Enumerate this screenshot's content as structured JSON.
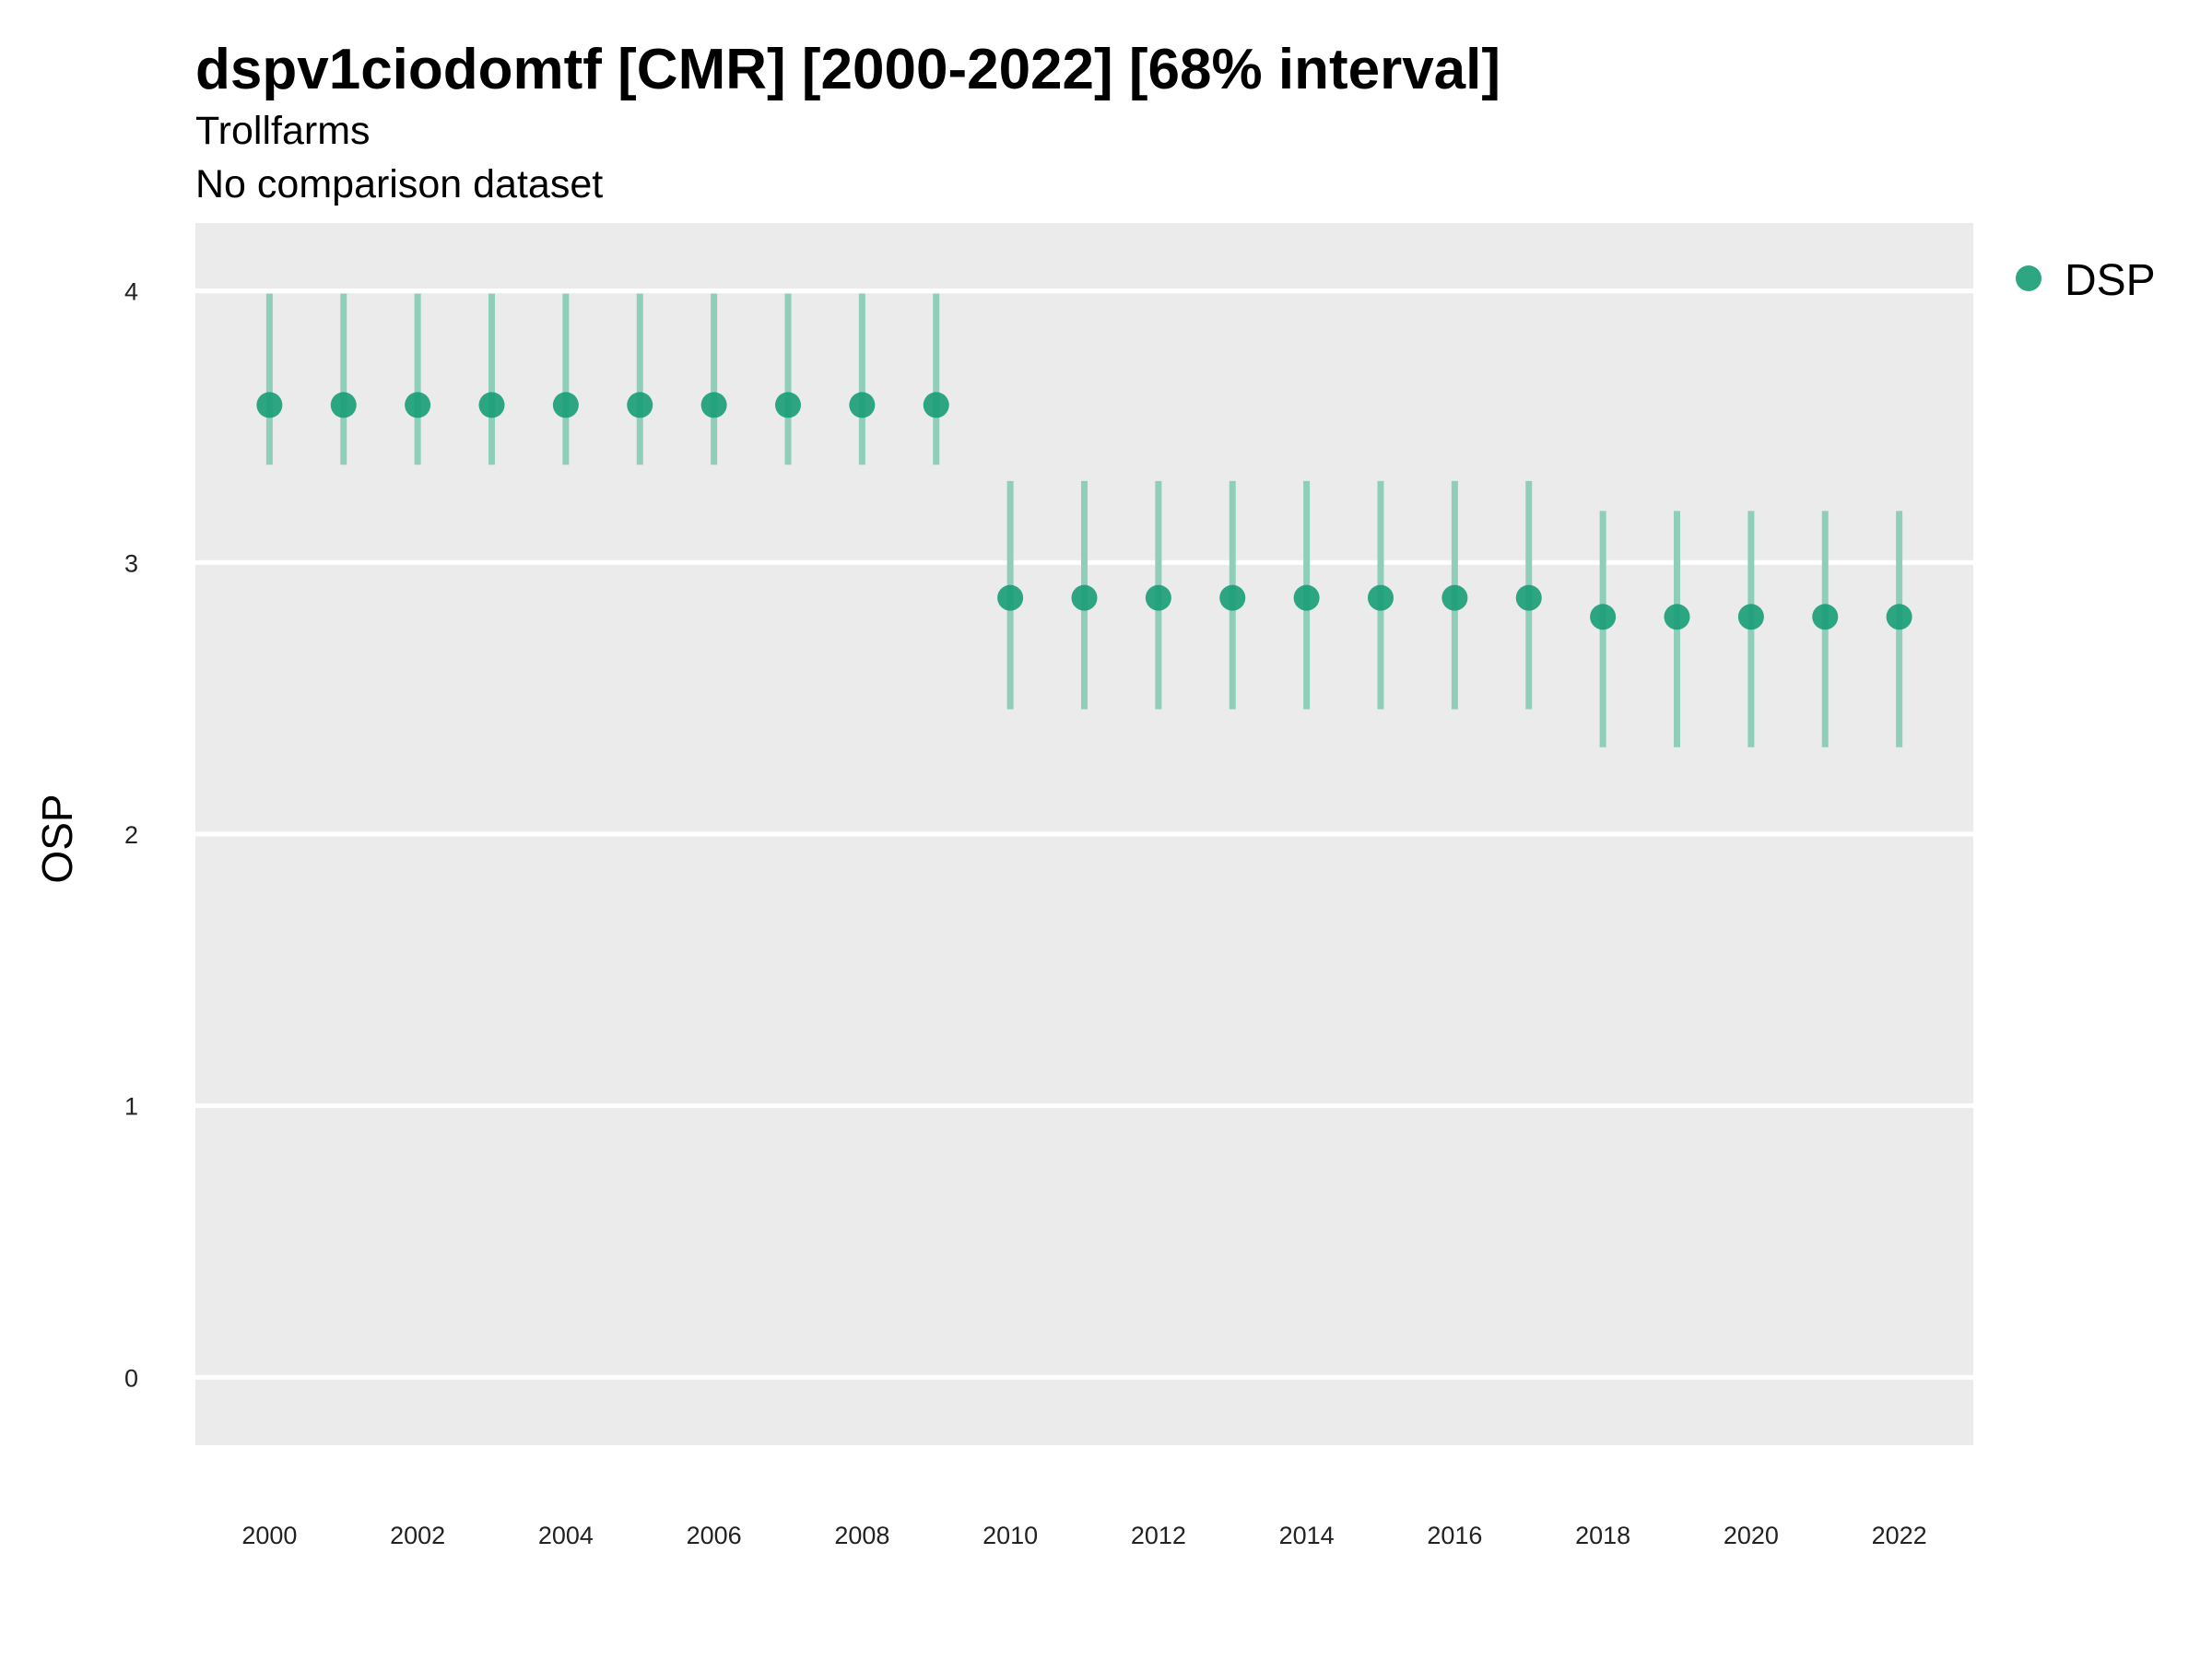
{
  "header": {
    "title": "dspv1ciodomtf [CMR] [2000-2022] [68% interval]",
    "subtitle_1": "Trollfarms",
    "subtitle_2": "No comparison dataset"
  },
  "chart_data": {
    "type": "scatter",
    "title": "dspv1ciodomtf [CMR] [2000-2022] [68% interval]",
    "subtitle": [
      "Trollfarms",
      "No comparison dataset"
    ],
    "xlabel": "",
    "ylabel": "OSP",
    "xlim": [
      1999,
      2023
    ],
    "ylim": [
      -0.25,
      4.25
    ],
    "x_ticks": [
      "2000",
      "2002",
      "2004",
      "2006",
      "2008",
      "2010",
      "2012",
      "2014",
      "2016",
      "2018",
      "2020",
      "2022"
    ],
    "y_ticks": [
      "0",
      "1",
      "2",
      "3",
      "4"
    ],
    "grid": true,
    "legend": {
      "position": "right",
      "entries": [
        "DSP"
      ]
    },
    "colors": {
      "point": "#1b9e77",
      "interval": "#8fcfb9",
      "panel": "#ebebeb",
      "grid": "#ffffff"
    },
    "series": [
      {
        "name": "DSP",
        "x": [
          2000,
          2001,
          2002,
          2003,
          2004,
          2005,
          2006,
          2007,
          2008,
          2009,
          2010,
          2011,
          2012,
          2013,
          2014,
          2015,
          2016,
          2017,
          2018,
          2019,
          2020,
          2021,
          2022
        ],
        "y": [
          3.58,
          3.58,
          3.58,
          3.58,
          3.58,
          3.58,
          3.58,
          3.58,
          3.58,
          3.58,
          2.87,
          2.87,
          2.87,
          2.87,
          2.87,
          2.87,
          2.87,
          2.87,
          2.8,
          2.8,
          2.8,
          2.8,
          2.8
        ],
        "lower": [
          3.36,
          3.36,
          3.36,
          3.36,
          3.36,
          3.36,
          3.36,
          3.36,
          3.36,
          3.36,
          2.46,
          2.46,
          2.46,
          2.46,
          2.46,
          2.46,
          2.46,
          2.46,
          2.32,
          2.32,
          2.32,
          2.32,
          2.32
        ],
        "upper": [
          3.99,
          3.99,
          3.99,
          3.99,
          3.99,
          3.99,
          3.99,
          3.99,
          3.99,
          3.99,
          3.3,
          3.3,
          3.3,
          3.3,
          3.3,
          3.3,
          3.3,
          3.3,
          3.19,
          3.19,
          3.19,
          3.19,
          3.19
        ]
      }
    ]
  }
}
